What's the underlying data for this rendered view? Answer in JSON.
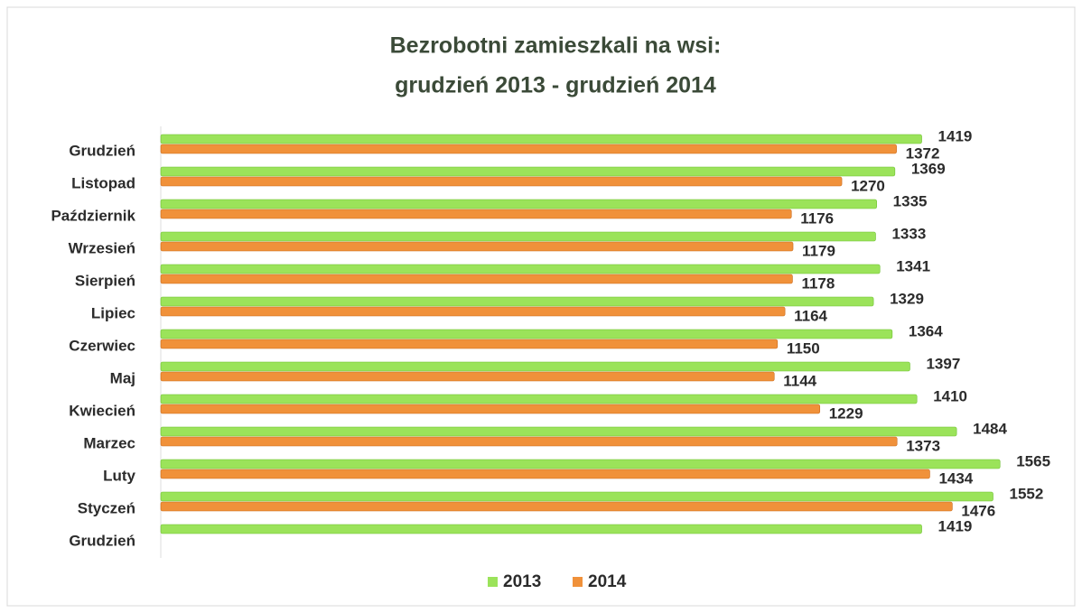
{
  "chart_data": {
    "type": "hbar",
    "title": [
      "Bezrobotni zamieszkali na wsi:",
      "grudzień 2013 - grudzień 2014"
    ],
    "categories": [
      "Grudzień",
      "Listopad",
      "Październik",
      "Wrzesień",
      "Sierpień",
      "Lipiec",
      "Czerwiec",
      "Maj",
      "Kwiecień",
      "Marzec",
      "Luty",
      "Styczeń",
      "Grudzień"
    ],
    "series": [
      {
        "name": "2013",
        "color": "#9be35a",
        "values": [
          1419,
          1369,
          1335,
          1333,
          1341,
          1329,
          1364,
          1397,
          1410,
          1484,
          1565,
          1552,
          1419
        ]
      },
      {
        "name": "2014",
        "color": "#f0913a",
        "values": [
          1372,
          1270,
          1176,
          1179,
          1178,
          1164,
          1150,
          1144,
          1229,
          1373,
          1434,
          1476,
          null
        ]
      }
    ],
    "xlim": [
      0,
      1600
    ],
    "legend": "bottom"
  }
}
